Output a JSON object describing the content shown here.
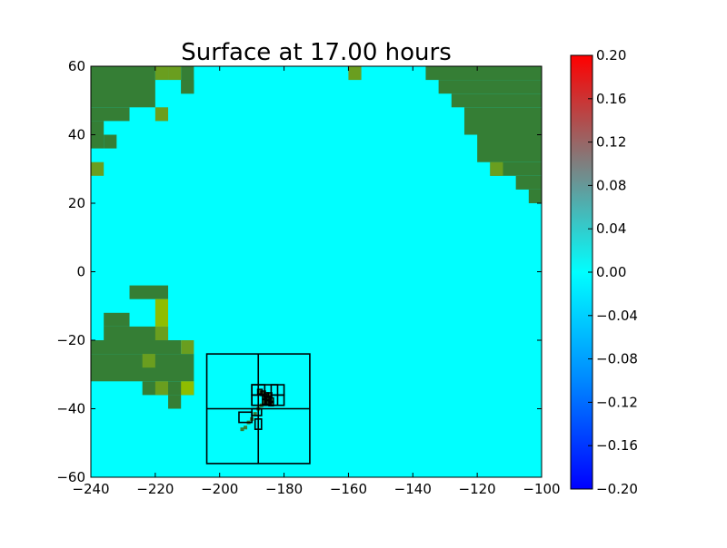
{
  "chart_data": {
    "type": "heatmap",
    "title": "Surface at 17.00 hours",
    "xlabel": "",
    "ylabel": "",
    "xlim": [
      -240,
      -100
    ],
    "ylim": [
      -60,
      60
    ],
    "x_ticks": [
      -240,
      -220,
      -200,
      -180,
      -160,
      -140,
      -120,
      -100
    ],
    "y_ticks": [
      -60,
      -40,
      -20,
      0,
      20,
      40,
      60
    ],
    "colorbar": {
      "range": [
        -0.2,
        0.2
      ],
      "ticks": [
        "-0.20",
        "-0.16",
        "-0.12",
        "-0.08",
        "-0.04",
        "0.00",
        "0.04",
        "0.08",
        "0.12",
        "0.16",
        "0.20"
      ],
      "colormap_stops": [
        {
          "value": -0.2,
          "color": "#0000ff"
        },
        {
          "value": -0.1,
          "color": "#0088ff"
        },
        {
          "value": 0.0,
          "color": "#00ffff"
        },
        {
          "value": 0.1,
          "color": "#7f7f7f"
        },
        {
          "value": 0.2,
          "color": "#ff0000"
        }
      ]
    },
    "colors": {
      "water_zero": "#00ffff",
      "land": "#357e35",
      "land_light": "#6a9e1f",
      "land_yellow": "#8fbd00",
      "grid_outline": "#000000"
    },
    "surface_value_water": 0.0,
    "land_cells": [
      {
        "x0": -240,
        "x1": -220,
        "y0": 48,
        "y1": 60
      },
      {
        "x0": -240,
        "x1": -228,
        "y0": 44,
        "y1": 48
      },
      {
        "x0": -240,
        "x1": -236,
        "y0": 36,
        "y1": 44
      },
      {
        "x0": -236,
        "x1": -232,
        "y0": 36,
        "y1": 40
      },
      {
        "x0": -212,
        "x1": -208,
        "y0": 52,
        "y1": 60
      },
      {
        "x0": -212,
        "x1": -208,
        "y0": 52,
        "y1": 56
      },
      {
        "x0": -136,
        "x1": -100,
        "y0": 56,
        "y1": 60
      },
      {
        "x0": -132,
        "x1": -100,
        "y0": 52,
        "y1": 56
      },
      {
        "x0": -128,
        "x1": -100,
        "y0": 48,
        "y1": 52
      },
      {
        "x0": -124,
        "x1": -100,
        "y0": 40,
        "y1": 48
      },
      {
        "x0": -120,
        "x1": -100,
        "y0": 32,
        "y1": 40
      },
      {
        "x0": -116,
        "x1": -100,
        "y0": 28,
        "y1": 32
      },
      {
        "x0": -108,
        "x1": -100,
        "y0": 24,
        "y1": 28
      },
      {
        "x0": -104,
        "x1": -100,
        "y0": 20,
        "y1": 24
      },
      {
        "x0": -228,
        "x1": -216,
        "y0": -8,
        "y1": -4
      },
      {
        "x0": -236,
        "x1": -228,
        "y0": -16,
        "y1": -12
      },
      {
        "x0": -236,
        "x1": -216,
        "y0": -20,
        "y1": -16
      },
      {
        "x0": -240,
        "x1": -212,
        "y0": -24,
        "y1": -20
      },
      {
        "x0": -240,
        "x1": -208,
        "y0": -32,
        "y1": -24
      },
      {
        "x0": -224,
        "x1": -208,
        "y0": -36,
        "y1": -32
      },
      {
        "x0": -216,
        "x1": -212,
        "y0": -40,
        "y1": -36
      }
    ],
    "land_light_cells": [
      {
        "x0": -220,
        "x1": -216,
        "y0": 56,
        "y1": 60
      },
      {
        "x0": -220,
        "x1": -216,
        "y0": 44,
        "y1": 48
      },
      {
        "x0": -240,
        "x1": -236,
        "y0": 28,
        "y1": 32
      },
      {
        "x0": -216,
        "x1": -212,
        "y0": 56,
        "y1": 60
      },
      {
        "x0": -160,
        "x1": -156,
        "y0": 56,
        "y1": 60
      },
      {
        "x0": -116,
        "x1": -112,
        "y0": 28,
        "y1": 32
      },
      {
        "x0": -224,
        "x1": -220,
        "y0": -28,
        "y1": -24
      },
      {
        "x0": -220,
        "x1": -216,
        "y0": -20,
        "y1": -16
      },
      {
        "x0": -212,
        "x1": -208,
        "y0": -24,
        "y1": -20
      },
      {
        "x0": -220,
        "x1": -216,
        "y0": -36,
        "y1": -32
      }
    ],
    "land_yellow_cells": [
      {
        "x0": -220,
        "x1": -216,
        "y0": -16,
        "y1": -8
      },
      {
        "x0": -212,
        "x1": -208,
        "y0": -36,
        "y1": -32
      }
    ],
    "refinement_boxes": [
      {
        "x0": -204,
        "x1": -172,
        "y0": -56,
        "y1": -24
      },
      {
        "x0": -188,
        "x1": -188,
        "y0": -56,
        "y1": -24
      },
      {
        "x0": -204,
        "x1": -172,
        "y0": -40,
        "y1": -40
      },
      {
        "x0": -190,
        "x1": -182,
        "y0": -39,
        "y1": -33
      },
      {
        "x0": -190,
        "x1": -186,
        "y0": -36,
        "y1": -33
      },
      {
        "x0": -184,
        "x1": -180,
        "y0": -36,
        "y1": -33
      },
      {
        "x0": -190,
        "x1": -186,
        "y0": -39,
        "y1": -36
      },
      {
        "x0": -184,
        "x1": -180,
        "y0": -39,
        "y1": -36
      },
      {
        "x0": -194,
        "x1": -190,
        "y0": -44,
        "y1": -41
      },
      {
        "x0": -189,
        "x1": -187,
        "y0": -46,
        "y1": -43
      },
      {
        "x0": -190,
        "x1": -187,
        "y0": -42,
        "y1": -40
      }
    ],
    "coastline_points": [
      [
        -187.5,
        -35
      ],
      [
        -186.5,
        -35.5
      ],
      [
        -185.5,
        -36
      ],
      [
        -185,
        -37
      ],
      [
        -184,
        -37.5
      ],
      [
        -186,
        -36.5
      ],
      [
        -184.5,
        -36
      ],
      [
        -185,
        -38
      ],
      [
        -184,
        -38.5
      ],
      [
        -186,
        -38
      ],
      [
        -187,
        -39
      ],
      [
        -188,
        -40
      ],
      [
        -189,
        -41.5
      ],
      [
        -190,
        -43
      ],
      [
        -191,
        -44
      ],
      [
        -192,
        -45.5
      ],
      [
        -193,
        -46
      ]
    ]
  }
}
